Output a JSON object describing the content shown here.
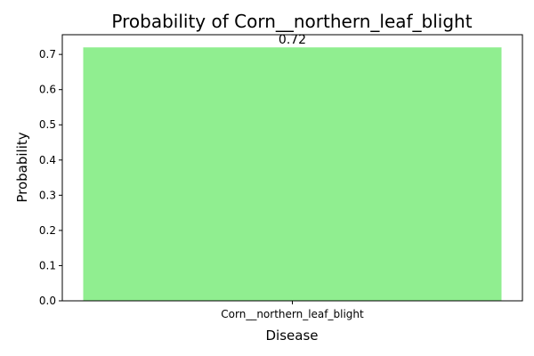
{
  "chart_data": {
    "type": "bar",
    "title": "Probability of Corn__northern_leaf_blight",
    "xlabel": "Disease",
    "ylabel": "Probability",
    "categories": [
      "Corn__northern_leaf_blight"
    ],
    "values": [
      0.72
    ],
    "data_labels": [
      "0.72"
    ],
    "ylim": [
      0,
      0.756
    ],
    "yticks": [
      0.0,
      0.1,
      0.2,
      0.3,
      0.4,
      0.5,
      0.6,
      0.7
    ],
    "ytick_labels": [
      "0.0",
      "0.1",
      "0.2",
      "0.3",
      "0.4",
      "0.5",
      "0.6",
      "0.7"
    ],
    "bar_color": "#90ee90",
    "grid": false,
    "legend": "none"
  }
}
